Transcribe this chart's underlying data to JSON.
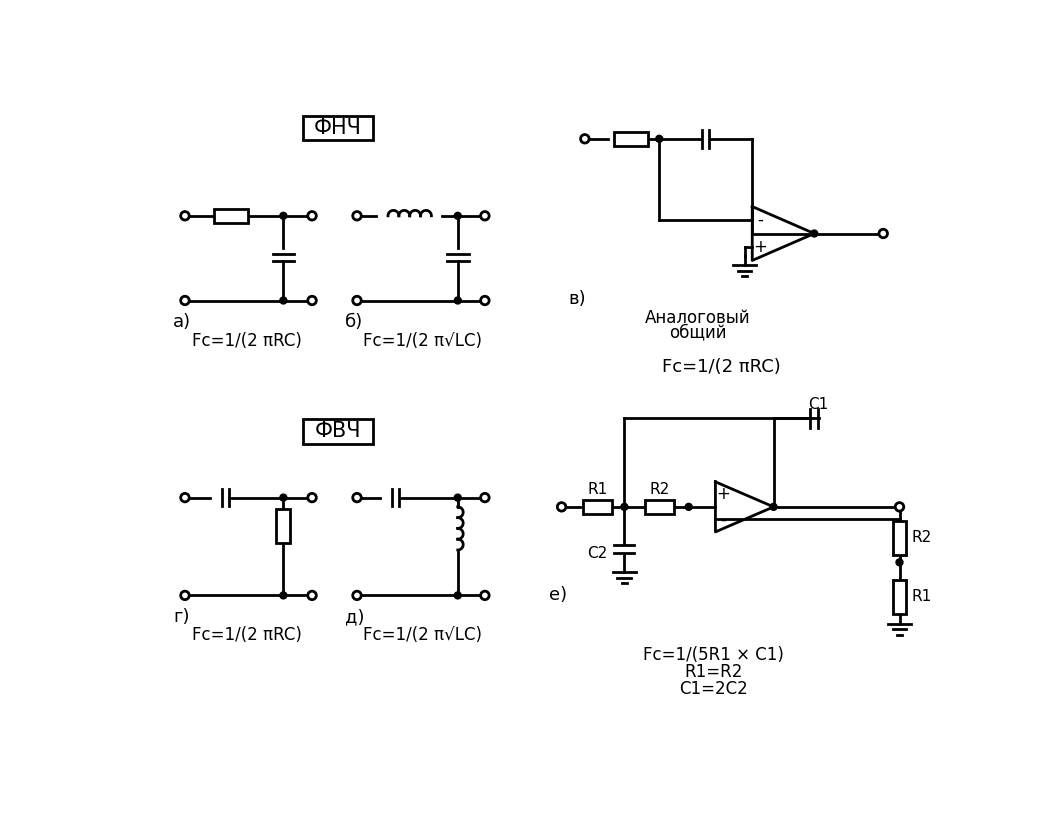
{
  "background_color": "#ffffff",
  "lw": 2.0,
  "fnch_label": "ФНЧ",
  "fvch_label": "ФВЧ",
  "label_a": "а)",
  "label_b": "б)",
  "label_v": "в)",
  "label_g": "г)",
  "label_d": "д)",
  "label_e": "е)",
  "formula_rc": "Fc=1/(2 πRC)",
  "formula_lc": "Fc=1/(2 π√LC)",
  "formula_rc2": "Fc=1/(2 πRC)",
  "formula_e1": "Fc=1/(5R1 × C1)",
  "formula_e2": "R1=R2",
  "formula_e3": "C1=2C2",
  "analog_line1": "Аналоговый",
  "analog_line2": "общий"
}
